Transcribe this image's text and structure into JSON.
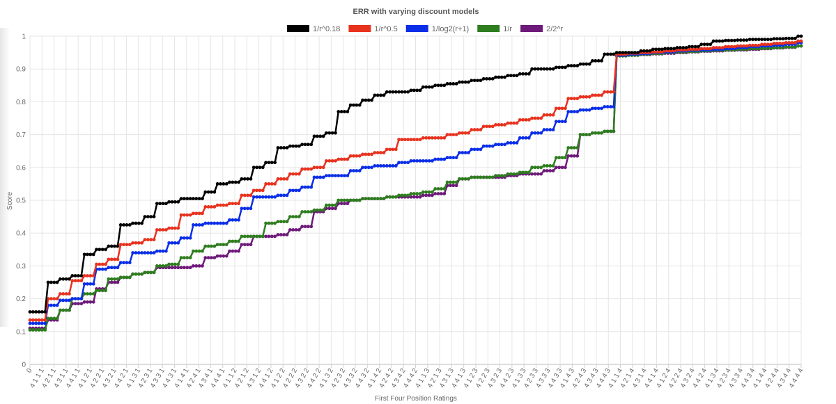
{
  "chart_data": {
    "type": "line",
    "title": "ERR with varying discount models",
    "xlabel": "First Four Position Ratings",
    "ylabel": "Score",
    "ylim": [
      0,
      1
    ],
    "yticks": [
      "0",
      "0.1",
      "0.2",
      "0.3",
      "0.4",
      "0.5",
      "0.6",
      "0.7",
      "0.8",
      "0.9",
      "1"
    ],
    "grid": true,
    "legend_position": "top",
    "x_count": 256,
    "x_tick_labels": [
      "0",
      "4 1 1 1",
      "4 2 1 1",
      "4 3 1 1",
      "4 4 1 1",
      "4 1 2 1",
      "4 2 2 1",
      "4 3 2 1",
      "4 4 2 1",
      "4 1 3 1",
      "4 2 3 1",
      "4 3 3 1",
      "4 4 3 1",
      "4 1 4 1",
      "4 2 4 1",
      "4 3 4 1",
      "4 4 4 1",
      "4 1 1 2",
      "4 2 1 2",
      "4 3 1 2",
      "4 4 1 2",
      "4 1 2 2",
      "4 2 2 2",
      "4 3 2 2",
      "4 4 2 2",
      "4 1 3 2",
      "4 2 3 2",
      "4 3 3 2",
      "4 4 3 2",
      "4 1 4 2",
      "4 2 4 2",
      "4 3 4 2",
      "4 4 4 2",
      "4 1 1 3",
      "4 2 1 3",
      "4 3 1 3",
      "4 4 1 3",
      "4 1 2 3",
      "4 2 2 3",
      "4 3 2 3",
      "4 4 2 3",
      "4 1 3 3",
      "4 2 3 3",
      "4 3 3 3",
      "4 4 3 3",
      "4 1 4 3",
      "4 2 4 3",
      "4 3 4 3",
      "4 4 4 3",
      "4 1 1 4",
      "4 2 1 4",
      "4 3 1 4",
      "4 4 1 4",
      "4 1 2 4",
      "4 2 2 4",
      "4 3 2 4",
      "4 4 2 4",
      "4 1 3 4",
      "4 2 3 4",
      "4 3 3 4",
      "4 4 3 4",
      "4 1 4 4",
      "4 2 4 4",
      "4 3 4 4",
      "4 4 4 4"
    ],
    "series": [
      {
        "name": "1/r^0.18",
        "color": "#000000",
        "y": [
          0.16,
          0.16,
          0.25,
          0.26,
          0.27,
          0.335,
          0.35,
          0.36,
          0.425,
          0.43,
          0.45,
          0.49,
          0.495,
          0.505,
          0.505,
          0.525,
          0.55,
          0.555,
          0.565,
          0.6,
          0.615,
          0.66,
          0.665,
          0.67,
          0.695,
          0.705,
          0.77,
          0.79,
          0.805,
          0.82,
          0.83,
          0.83,
          0.835,
          0.845,
          0.85,
          0.855,
          0.86,
          0.865,
          0.87,
          0.875,
          0.88,
          0.885,
          0.9,
          0.9,
          0.905,
          0.91,
          0.915,
          0.925,
          0.945,
          0.95,
          0.95,
          0.955,
          0.96,
          0.962,
          0.965,
          0.968,
          0.975,
          0.985,
          0.987,
          0.988,
          0.99,
          0.99,
          0.992,
          0.993,
          1.0
        ]
      },
      {
        "name": "1/r^0.5",
        "color": "#e8321e",
        "y": [
          0.135,
          0.135,
          0.2,
          0.215,
          0.255,
          0.27,
          0.305,
          0.32,
          0.365,
          0.37,
          0.38,
          0.41,
          0.415,
          0.455,
          0.46,
          0.48,
          0.485,
          0.49,
          0.515,
          0.53,
          0.55,
          0.565,
          0.58,
          0.595,
          0.6,
          0.62,
          0.625,
          0.635,
          0.64,
          0.645,
          0.655,
          0.685,
          0.685,
          0.69,
          0.69,
          0.7,
          0.705,
          0.715,
          0.725,
          0.73,
          0.735,
          0.745,
          0.75,
          0.76,
          0.78,
          0.81,
          0.815,
          0.82,
          0.83,
          0.945,
          0.948,
          0.95,
          0.952,
          0.955,
          0.958,
          0.96,
          0.962,
          0.965,
          0.968,
          0.97,
          0.972,
          0.975,
          0.978,
          0.98,
          0.985
        ]
      },
      {
        "name": "1/log2(r+1)",
        "color": "#0a2ee8",
        "y": [
          0.125,
          0.125,
          0.18,
          0.195,
          0.2,
          0.245,
          0.29,
          0.295,
          0.31,
          0.34,
          0.34,
          0.345,
          0.37,
          0.385,
          0.425,
          0.43,
          0.43,
          0.44,
          0.475,
          0.51,
          0.51,
          0.515,
          0.53,
          0.54,
          0.57,
          0.575,
          0.575,
          0.59,
          0.6,
          0.605,
          0.605,
          0.615,
          0.62,
          0.62,
          0.625,
          0.63,
          0.645,
          0.655,
          0.665,
          0.67,
          0.675,
          0.69,
          0.705,
          0.715,
          0.74,
          0.77,
          0.775,
          0.78,
          0.785,
          0.942,
          0.945,
          0.947,
          0.95,
          0.952,
          0.955,
          0.957,
          0.958,
          0.96,
          0.962,
          0.965,
          0.968,
          0.97,
          0.972,
          0.975,
          0.98
        ]
      },
      {
        "name": "1/r",
        "color": "#2e7d1f",
        "y": [
          0.105,
          0.105,
          0.14,
          0.165,
          0.2,
          0.215,
          0.225,
          0.26,
          0.265,
          0.275,
          0.28,
          0.3,
          0.305,
          0.325,
          0.345,
          0.36,
          0.365,
          0.375,
          0.39,
          0.39,
          0.43,
          0.435,
          0.45,
          0.465,
          0.47,
          0.485,
          0.5,
          0.5,
          0.505,
          0.505,
          0.51,
          0.515,
          0.52,
          0.525,
          0.535,
          0.555,
          0.565,
          0.57,
          0.57,
          0.575,
          0.58,
          0.585,
          0.6,
          0.605,
          0.63,
          0.66,
          0.7,
          0.705,
          0.71,
          0.94,
          0.942,
          0.945,
          0.947,
          0.95,
          0.952,
          0.953,
          0.955,
          0.957,
          0.958,
          0.96,
          0.962,
          0.963,
          0.965,
          0.967,
          0.97
        ]
      },
      {
        "name": "2/2^r",
        "color": "#6e1a7a",
        "y": [
          0.11,
          0.11,
          0.135,
          0.165,
          0.185,
          0.19,
          0.23,
          0.25,
          0.265,
          0.275,
          0.28,
          0.295,
          0.295,
          0.295,
          0.3,
          0.325,
          0.33,
          0.345,
          0.365,
          0.39,
          0.39,
          0.395,
          0.41,
          0.42,
          0.465,
          0.475,
          0.49,
          0.5,
          0.505,
          0.505,
          0.51,
          0.51,
          0.51,
          0.515,
          0.52,
          0.545,
          0.565,
          0.57,
          0.57,
          0.57,
          0.575,
          0.58,
          0.58,
          0.59,
          0.6,
          0.635,
          0.7,
          0.705,
          0.71,
          0.94,
          0.942,
          0.944,
          0.946,
          0.948,
          0.95,
          0.952,
          0.954,
          0.955,
          0.957,
          0.958,
          0.96,
          0.962,
          0.964,
          0.966,
          0.97
        ]
      }
    ]
  }
}
